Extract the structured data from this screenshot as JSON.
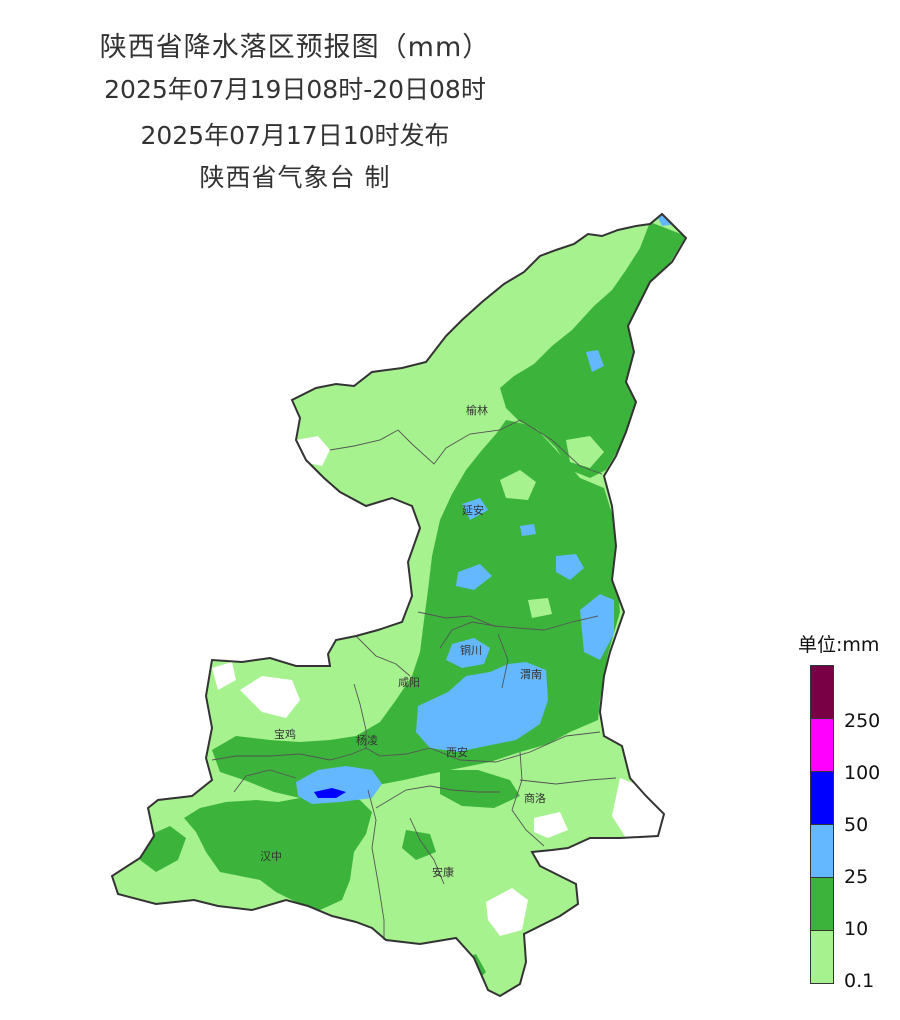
{
  "title": {
    "line1": "陕西省降水落区预报图（mm）",
    "line2": "2025年07月19日08时-20日08时",
    "line3": "2025年07月17日10时发布",
    "line4": "陕西省气象台 制"
  },
  "cities": [
    {
      "name": "榆林"
    },
    {
      "name": "延安"
    },
    {
      "name": "铜川"
    },
    {
      "name": "渭南"
    },
    {
      "name": "咸阳"
    },
    {
      "name": "宝鸡"
    },
    {
      "name": "杨凌"
    },
    {
      "name": "西安"
    },
    {
      "name": "商洛"
    },
    {
      "name": "汉中"
    },
    {
      "name": "安康"
    }
  ],
  "legend": {
    "unit": "单位:mm",
    "levels": [
      {
        "label": "250",
        "color": "#7a0046"
      },
      {
        "label": "100",
        "color": "#ff00ff"
      },
      {
        "label": "50",
        "color": "#0000ff"
      },
      {
        "label": "25",
        "color": "#63b8ff"
      },
      {
        "label": "10",
        "color": "#3cb43c"
      },
      {
        "label": "0.1",
        "color": "#a6f28e"
      }
    ]
  },
  "colors": {
    "light_rain": "#a6f28e",
    "moderate_rain": "#3cb43c",
    "heavy_rain": "#63b8ff",
    "rainstorm": "#0000ff",
    "boundary": "#333333"
  }
}
